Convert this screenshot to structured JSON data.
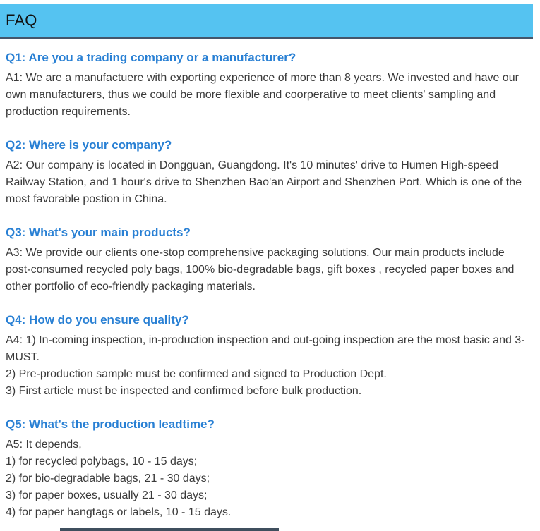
{
  "header": {
    "title": "FAQ"
  },
  "colors": {
    "header_bg": "#55c3f1",
    "header_border": "#44566b",
    "question_blue": "#2980d4",
    "body_text": "#3a3a3a",
    "bottom_bar": "#3f4f5e"
  },
  "faqs": [
    {
      "question": "Q1: Are you a trading company or a manufacturer?",
      "answer_lines": [
        "A1: We are a manufactuere with exporting experience of more than 8 years. We invested and have our own manufacturers, thus we could be more flexible and coorperative to meet clients' sampling and production requirements."
      ]
    },
    {
      "question": "Q2: Where is your company?",
      "answer_lines": [
        "A2: Our company is located in Dongguan, Guangdong. It's 10 minutes' drive to Humen High-speed Railway Station, and 1 hour's drive to Shenzhen Bao'an Airport and Shenzhen Port. Which is one of the most favorable postion in China."
      ]
    },
    {
      "question": "Q3: What's your main products?",
      "answer_lines": [
        "A3: We provide our clients one-stop comprehensive packaging solutions. Our main products include post-consumed recycled poly bags, 100% bio-degradable bags, gift boxes , recycled paper boxes and other portfolio of eco-friendly packaging materials."
      ]
    },
    {
      "question": "Q4: How do you ensure quality?",
      "answer_lines": [
        "A4: 1) In-coming inspection, in-production inspection and out-going inspection are the most basic and 3-MUST.",
        "2) Pre-production sample must be confirmed and signed to Production Dept.",
        "3) First article must be inspected and confirmed before bulk production."
      ]
    },
    {
      "question": "Q5: What's the production leadtime?",
      "answer_lines": [
        "A5: It depends,",
        "1) for recycled polybags, 10 - 15 days;",
        "2) for bio-degradable bags, 21 - 30 days;",
        "3) for paper boxes, usually 21 - 30 days;",
        "4) for paper hangtags or labels, 10 - 15 days."
      ]
    }
  ]
}
